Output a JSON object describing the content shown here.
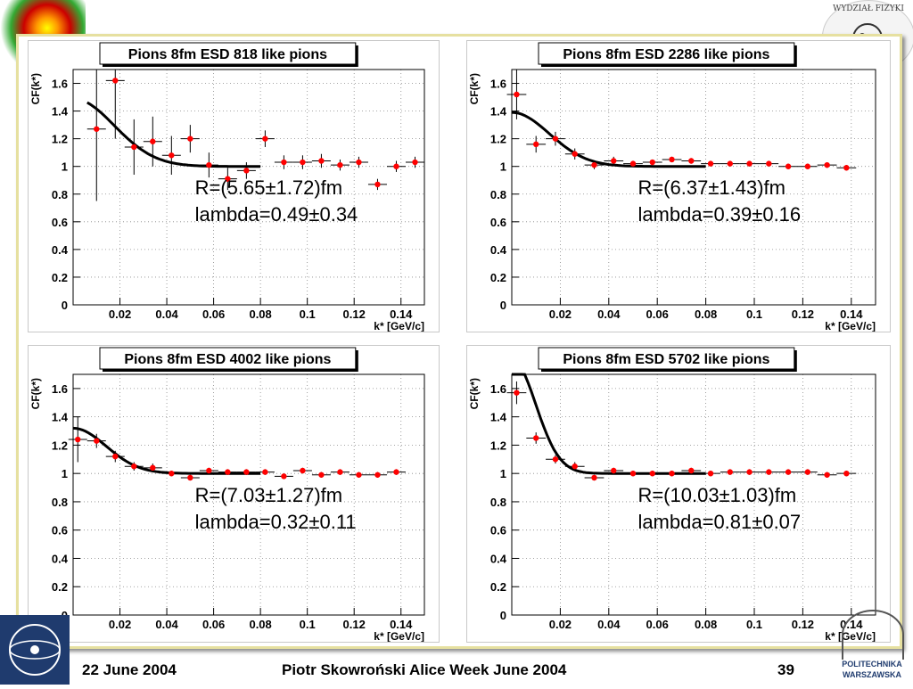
{
  "footer": {
    "date": "22 June 2004",
    "author_event": "Piotr Skowroński  Alice Week June  2004",
    "page_number": "39",
    "institution_line1": "POLITECHNIKA",
    "institution_line2": "WARSZAWSKA",
    "faculty_seal": "WYDZIAŁ FIZYKI"
  },
  "chart_data": [
    {
      "type": "scatter",
      "title": "Pions 8fm ESD  818 like pions",
      "xlabel": "k* [GeV/c]",
      "ylabel": "CF(k*)",
      "xlim": [
        0,
        0.15
      ],
      "ylim": [
        0,
        1.7
      ],
      "xticks": [
        0.02,
        0.04,
        0.06,
        0.08,
        0.1,
        0.12,
        0.14
      ],
      "xtick_labels": [
        "0.02",
        "0.04",
        "0.06",
        "0.08",
        "0.1",
        "0.12",
        "0.14"
      ],
      "yticks": [
        0,
        0.2,
        0.4,
        0.6,
        0.8,
        1,
        1.2,
        1.4,
        1.6
      ],
      "ytick_labels": [
        "0",
        "0.2",
        "0.4",
        "0.6",
        "0.8",
        "1",
        "1.2",
        "1.4",
        "1.6"
      ],
      "grid": true,
      "points": [
        {
          "x": 0.01,
          "y": 1.27,
          "err": 0.52
        },
        {
          "x": 0.018,
          "y": 1.62,
          "err": 0.42
        },
        {
          "x": 0.026,
          "y": 1.14,
          "err": 0.2
        },
        {
          "x": 0.034,
          "y": 1.18,
          "err": 0.18
        },
        {
          "x": 0.042,
          "y": 1.08,
          "err": 0.14
        },
        {
          "x": 0.05,
          "y": 1.2,
          "err": 0.1
        },
        {
          "x": 0.058,
          "y": 1.01,
          "err": 0.09
        },
        {
          "x": 0.066,
          "y": 0.91,
          "err": 0.08
        },
        {
          "x": 0.074,
          "y": 0.97,
          "err": 0.06
        },
        {
          "x": 0.082,
          "y": 1.2,
          "err": 0.06
        },
        {
          "x": 0.09,
          "y": 1.03,
          "err": 0.05
        },
        {
          "x": 0.098,
          "y": 1.03,
          "err": 0.05
        },
        {
          "x": 0.106,
          "y": 1.04,
          "err": 0.05
        },
        {
          "x": 0.114,
          "y": 1.01,
          "err": 0.04
        },
        {
          "x": 0.122,
          "y": 1.03,
          "err": 0.04
        },
        {
          "x": 0.13,
          "y": 0.87,
          "err": 0.04
        },
        {
          "x": 0.138,
          "y": 1.0,
          "err": 0.04
        },
        {
          "x": 0.146,
          "y": 1.03,
          "err": 0.04
        }
      ],
      "fit": {
        "R": 5.65,
        "lambda": 0.49,
        "xmin": 0.006,
        "xmax": 0.08
      },
      "fit_line1": "R=(5.65±1.72)fm",
      "fit_line2": "lambda=0.49±0.34"
    },
    {
      "type": "scatter",
      "title": "Pions 8fm ESD 2286 like pions",
      "xlabel": "k* [GeV/c]",
      "ylabel": "CF(k*)",
      "xlim": [
        0,
        0.15
      ],
      "ylim": [
        0,
        1.7
      ],
      "xticks": [
        0.02,
        0.04,
        0.06,
        0.08,
        0.1,
        0.12,
        0.14
      ],
      "xtick_labels": [
        "0.02",
        "0.04",
        "0.06",
        "0.08",
        "0.1",
        "0.12",
        "0.14"
      ],
      "yticks": [
        0,
        0.2,
        0.4,
        0.6,
        0.8,
        1,
        1.2,
        1.4,
        1.6
      ],
      "ytick_labels": [
        "0",
        "0.2",
        "0.4",
        "0.6",
        "0.8",
        "1",
        "1.2",
        "1.4",
        "1.6"
      ],
      "grid": true,
      "points": [
        {
          "x": 0.002,
          "y": 1.52,
          "err": 0.18
        },
        {
          "x": 0.01,
          "y": 1.16,
          "err": 0.06
        },
        {
          "x": 0.018,
          "y": 1.2,
          "err": 0.05
        },
        {
          "x": 0.026,
          "y": 1.09,
          "err": 0.04
        },
        {
          "x": 0.034,
          "y": 1.01,
          "err": 0.03
        },
        {
          "x": 0.042,
          "y": 1.04,
          "err": 0.03
        },
        {
          "x": 0.05,
          "y": 1.02,
          "err": 0.02
        },
        {
          "x": 0.058,
          "y": 1.03,
          "err": 0.02
        },
        {
          "x": 0.066,
          "y": 1.05,
          "err": 0.02
        },
        {
          "x": 0.074,
          "y": 1.04,
          "err": 0.02
        },
        {
          "x": 0.082,
          "y": 1.02,
          "err": 0.02
        },
        {
          "x": 0.09,
          "y": 1.02,
          "err": 0.02
        },
        {
          "x": 0.098,
          "y": 1.02,
          "err": 0.02
        },
        {
          "x": 0.106,
          "y": 1.02,
          "err": 0.02
        },
        {
          "x": 0.114,
          "y": 1.0,
          "err": 0.02
        },
        {
          "x": 0.122,
          "y": 1.0,
          "err": 0.02
        },
        {
          "x": 0.13,
          "y": 1.01,
          "err": 0.02
        },
        {
          "x": 0.138,
          "y": 0.99,
          "err": 0.02
        }
      ],
      "fit": {
        "R": 6.37,
        "lambda": 0.39,
        "xmin": 0.0,
        "xmax": 0.08
      },
      "fit_line1": "R=(6.37±1.43)fm",
      "fit_line2": "lambda=0.39±0.16"
    },
    {
      "type": "scatter",
      "title": "Pions 8fm ESD 4002 like pions",
      "xlabel": "k* [GeV/c]",
      "ylabel": "CF(k*)",
      "xlim": [
        0,
        0.15
      ],
      "ylim": [
        0,
        1.7
      ],
      "xticks": [
        0.02,
        0.04,
        0.06,
        0.08,
        0.1,
        0.12,
        0.14
      ],
      "xtick_labels": [
        "0.02",
        "0.04",
        "0.06",
        "0.08",
        "0.1",
        "0.12",
        "0.14"
      ],
      "yticks": [
        0,
        0.2,
        0.4,
        0.6,
        0.8,
        1,
        1.2,
        1.4,
        1.6
      ],
      "ytick_labels": [
        "0",
        "0.2",
        "0.4",
        "0.6",
        "0.8",
        "1",
        "1.2",
        "1.4",
        "1.6"
      ],
      "grid": true,
      "points": [
        {
          "x": 0.002,
          "y": 1.24,
          "err": 0.16
        },
        {
          "x": 0.01,
          "y": 1.23,
          "err": 0.05
        },
        {
          "x": 0.018,
          "y": 1.12,
          "err": 0.04
        },
        {
          "x": 0.026,
          "y": 1.05,
          "err": 0.03
        },
        {
          "x": 0.034,
          "y": 1.04,
          "err": 0.03
        },
        {
          "x": 0.042,
          "y": 1.0,
          "err": 0.02
        },
        {
          "x": 0.05,
          "y": 0.97,
          "err": 0.02
        },
        {
          "x": 0.058,
          "y": 1.02,
          "err": 0.02
        },
        {
          "x": 0.066,
          "y": 1.01,
          "err": 0.02
        },
        {
          "x": 0.074,
          "y": 1.01,
          "err": 0.02
        },
        {
          "x": 0.082,
          "y": 1.01,
          "err": 0.02
        },
        {
          "x": 0.09,
          "y": 0.98,
          "err": 0.02
        },
        {
          "x": 0.098,
          "y": 1.02,
          "err": 0.02
        },
        {
          "x": 0.106,
          "y": 0.99,
          "err": 0.02
        },
        {
          "x": 0.114,
          "y": 1.01,
          "err": 0.02
        },
        {
          "x": 0.122,
          "y": 0.99,
          "err": 0.02
        },
        {
          "x": 0.13,
          "y": 0.99,
          "err": 0.02
        },
        {
          "x": 0.138,
          "y": 1.01,
          "err": 0.02
        }
      ],
      "fit": {
        "R": 7.03,
        "lambda": 0.32,
        "xmin": 0.0,
        "xmax": 0.08
      },
      "fit_line1": "R=(7.03±1.27)fm",
      "fit_line2": "lambda=0.32±0.11"
    },
    {
      "type": "scatter",
      "title": "Pions 8fm ESD 5702 like pions",
      "xlabel": "k* [GeV/c]",
      "ylabel": "CF(k*)",
      "xlim": [
        0,
        0.15
      ],
      "ylim": [
        0,
        1.7
      ],
      "xticks": [
        0.02,
        0.04,
        0.06,
        0.08,
        0.1,
        0.12,
        0.14
      ],
      "xtick_labels": [
        "0.02",
        "0.04",
        "0.06",
        "0.08",
        "0.1",
        "0.12",
        "0.14"
      ],
      "yticks": [
        0,
        0.2,
        0.4,
        0.6,
        0.8,
        1,
        1.2,
        1.4,
        1.6
      ],
      "ytick_labels": [
        "0",
        "0.2",
        "0.4",
        "0.6",
        "0.8",
        "1",
        "1.2",
        "1.4",
        "1.6"
      ],
      "grid": true,
      "points": [
        {
          "x": 0.002,
          "y": 1.57,
          "err": 0.08
        },
        {
          "x": 0.01,
          "y": 1.25,
          "err": 0.04
        },
        {
          "x": 0.018,
          "y": 1.1,
          "err": 0.03
        },
        {
          "x": 0.026,
          "y": 1.05,
          "err": 0.03
        },
        {
          "x": 0.034,
          "y": 0.97,
          "err": 0.02
        },
        {
          "x": 0.042,
          "y": 1.02,
          "err": 0.02
        },
        {
          "x": 0.05,
          "y": 1.0,
          "err": 0.02
        },
        {
          "x": 0.058,
          "y": 1.0,
          "err": 0.02
        },
        {
          "x": 0.066,
          "y": 1.0,
          "err": 0.02
        },
        {
          "x": 0.074,
          "y": 1.02,
          "err": 0.02
        },
        {
          "x": 0.082,
          "y": 1.0,
          "err": 0.02
        },
        {
          "x": 0.09,
          "y": 1.01,
          "err": 0.02
        },
        {
          "x": 0.098,
          "y": 1.01,
          "err": 0.02
        },
        {
          "x": 0.106,
          "y": 1.01,
          "err": 0.02
        },
        {
          "x": 0.114,
          "y": 1.01,
          "err": 0.02
        },
        {
          "x": 0.122,
          "y": 1.01,
          "err": 0.02
        },
        {
          "x": 0.13,
          "y": 0.99,
          "err": 0.02
        },
        {
          "x": 0.138,
          "y": 1.0,
          "err": 0.02
        }
      ],
      "fit": {
        "R": 10.03,
        "lambda": 0.81,
        "xmin": 0.0,
        "xmax": 0.08
      },
      "fit_line1": "R=(10.03±1.03)fm",
      "fit_line2": "lambda=0.81±0.07"
    }
  ]
}
